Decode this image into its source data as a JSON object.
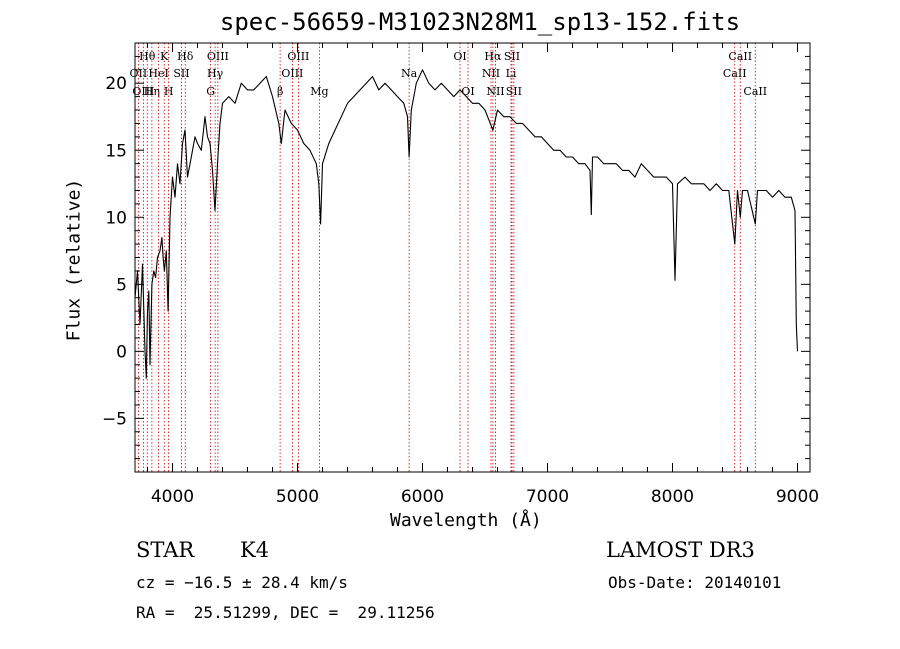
{
  "chart_data": {
    "type": "line",
    "title": "spec-56659-M31023N28M1_sp13-152.fits",
    "xlabel": "Wavelength (Å)",
    "ylabel": "Flux (relative)",
    "xlim": [
      3700,
      9100
    ],
    "ylim": [
      -9,
      23
    ],
    "xticks": [
      4000,
      5000,
      6000,
      7000,
      8000,
      9000
    ],
    "yticks": [
      -5,
      0,
      5,
      10,
      15,
      20
    ],
    "series": [
      {
        "name": "flux",
        "points": [
          [
            3700,
            4.0
          ],
          [
            3720,
            6.0
          ],
          [
            3740,
            2.0
          ],
          [
            3760,
            6.5
          ],
          [
            3780,
            0.0
          ],
          [
            3790,
            -2.0
          ],
          [
            3800,
            3.0
          ],
          [
            3810,
            4.5
          ],
          [
            3820,
            -1.0
          ],
          [
            3835,
            5.0
          ],
          [
            3850,
            6.0
          ],
          [
            3865,
            5.5
          ],
          [
            3880,
            7.0
          ],
          [
            3900,
            7.5
          ],
          [
            3915,
            8.5
          ],
          [
            3925,
            7.0
          ],
          [
            3935,
            6.0
          ],
          [
            3950,
            7.5
          ],
          [
            3965,
            3.0
          ],
          [
            3980,
            10.0
          ],
          [
            4000,
            13.0
          ],
          [
            4020,
            11.5
          ],
          [
            4040,
            14.0
          ],
          [
            4060,
            12.5
          ],
          [
            4080,
            15.5
          ],
          [
            4100,
            16.5
          ],
          [
            4120,
            13.0
          ],
          [
            4150,
            14.5
          ],
          [
            4180,
            16.0
          ],
          [
            4200,
            15.5
          ],
          [
            4230,
            15.0
          ],
          [
            4260,
            17.5
          ],
          [
            4280,
            16.0
          ],
          [
            4300,
            15.5
          ],
          [
            4320,
            13.5
          ],
          [
            4340,
            10.5
          ],
          [
            4360,
            14.0
          ],
          [
            4380,
            17.0
          ],
          [
            4400,
            18.5
          ],
          [
            4450,
            19.0
          ],
          [
            4500,
            18.5
          ],
          [
            4550,
            20.0
          ],
          [
            4600,
            19.5
          ],
          [
            4650,
            19.5
          ],
          [
            4700,
            20.0
          ],
          [
            4750,
            20.5
          ],
          [
            4800,
            19.0
          ],
          [
            4850,
            17.0
          ],
          [
            4870,
            15.5
          ],
          [
            4900,
            18.0
          ],
          [
            4950,
            17.0
          ],
          [
            5000,
            16.5
          ],
          [
            5050,
            15.5
          ],
          [
            5100,
            15.0
          ],
          [
            5150,
            14.0
          ],
          [
            5170,
            12.5
          ],
          [
            5185,
            9.5
          ],
          [
            5200,
            14.0
          ],
          [
            5250,
            15.5
          ],
          [
            5300,
            16.5
          ],
          [
            5350,
            17.5
          ],
          [
            5400,
            18.5
          ],
          [
            5450,
            19.0
          ],
          [
            5500,
            19.5
          ],
          [
            5550,
            20.0
          ],
          [
            5600,
            20.5
          ],
          [
            5650,
            19.5
          ],
          [
            5700,
            20.0
          ],
          [
            5750,
            19.5
          ],
          [
            5800,
            19.0
          ],
          [
            5850,
            18.5
          ],
          [
            5880,
            17.5
          ],
          [
            5893,
            14.5
          ],
          [
            5910,
            18.0
          ],
          [
            5950,
            20.0
          ],
          [
            6000,
            21.0
          ],
          [
            6050,
            20.0
          ],
          [
            6100,
            19.5
          ],
          [
            6150,
            20.0
          ],
          [
            6200,
            19.5
          ],
          [
            6250,
            19.0
          ],
          [
            6300,
            19.5
          ],
          [
            6350,
            19.0
          ],
          [
            6400,
            18.5
          ],
          [
            6450,
            18.5
          ],
          [
            6500,
            18.0
          ],
          [
            6563,
            16.5
          ],
          [
            6600,
            18.0
          ],
          [
            6650,
            17.5
          ],
          [
            6700,
            17.5
          ],
          [
            6750,
            17.0
          ],
          [
            6800,
            17.0
          ],
          [
            6850,
            16.5
          ],
          [
            6900,
            16.0
          ],
          [
            6950,
            16.0
          ],
          [
            7000,
            15.5
          ],
          [
            7050,
            15.0
          ],
          [
            7100,
            15.0
          ],
          [
            7150,
            14.5
          ],
          [
            7200,
            14.5
          ],
          [
            7250,
            14.0
          ],
          [
            7300,
            14.0
          ],
          [
            7340,
            13.5
          ],
          [
            7350,
            10.2
          ],
          [
            7360,
            14.5
          ],
          [
            7400,
            14.5
          ],
          [
            7450,
            14.0
          ],
          [
            7500,
            14.0
          ],
          [
            7550,
            14.0
          ],
          [
            7600,
            13.5
          ],
          [
            7650,
            13.5
          ],
          [
            7700,
            13.0
          ],
          [
            7750,
            14.0
          ],
          [
            7800,
            13.5
          ],
          [
            7850,
            13.0
          ],
          [
            7900,
            13.0
          ],
          [
            7950,
            13.0
          ],
          [
            8000,
            12.5
          ],
          [
            8020,
            5.3
          ],
          [
            8040,
            12.5
          ],
          [
            8100,
            13.0
          ],
          [
            8150,
            12.5
          ],
          [
            8200,
            12.5
          ],
          [
            8250,
            12.5
          ],
          [
            8300,
            12.0
          ],
          [
            8350,
            12.5
          ],
          [
            8400,
            12.0
          ],
          [
            8450,
            12.0
          ],
          [
            8498,
            8.0
          ],
          [
            8520,
            12.0
          ],
          [
            8542,
            10.0
          ],
          [
            8560,
            12.0
          ],
          [
            8600,
            12.0
          ],
          [
            8662,
            9.5
          ],
          [
            8680,
            12.0
          ],
          [
            8700,
            12.0
          ],
          [
            8750,
            12.0
          ],
          [
            8800,
            11.5
          ],
          [
            8850,
            12.0
          ],
          [
            8900,
            11.5
          ],
          [
            8950,
            11.5
          ],
          [
            8980,
            10.5
          ],
          [
            8990,
            2.0
          ],
          [
            9000,
            0.0
          ]
        ]
      }
    ],
    "lines": [
      {
        "label": "Hθ",
        "w": 3798,
        "row": 1
      },
      {
        "label": "OII",
        "w": 3727,
        "row": 2
      },
      {
        "label": "OIII",
        "w": 3767,
        "row": 3
      },
      {
        "label": "Hη",
        "w": 3835,
        "row": 3
      },
      {
        "label": "K",
        "w": 3934,
        "row": 1
      },
      {
        "label": "HeI",
        "w": 3889,
        "row": 2
      },
      {
        "label": "SII",
        "w": 4072,
        "row": 2
      },
      {
        "label": "H",
        "w": 3969,
        "row": 3
      },
      {
        "label": "Hδ",
        "w": 4102,
        "row": 1
      },
      {
        "label": "OIII",
        "w": 4363,
        "row": 1
      },
      {
        "label": "Hγ",
        "w": 4341,
        "row": 2
      },
      {
        "label": "G",
        "w": 4305,
        "row": 3
      },
      {
        "label": "OIII",
        "w": 5007,
        "row": 1
      },
      {
        "label": "OIII",
        "w": 4959,
        "row": 2
      },
      {
        "label": "β",
        "w": 4861,
        "row": 3
      },
      {
        "label": "Mg",
        "w": 5175,
        "row": 3
      },
      {
        "label": "Na",
        "w": 5893,
        "row": 2
      },
      {
        "label": "OI",
        "w": 6300,
        "row": 1
      },
      {
        "label": "OI",
        "w": 6364,
        "row": 3
      },
      {
        "label": "Hα",
        "w": 6563,
        "row": 1
      },
      {
        "label": "SII",
        "w": 6716,
        "row": 1
      },
      {
        "label": "NII",
        "w": 6548,
        "row": 2
      },
      {
        "label": "Li",
        "w": 6708,
        "row": 2
      },
      {
        "label": "NII",
        "w": 6584,
        "row": 3
      },
      {
        "label": "SII",
        "w": 6731,
        "row": 3
      },
      {
        "label": "CaII",
        "w": 8542,
        "row": 1
      },
      {
        "label": "CaII",
        "w": 8498,
        "row": 2
      },
      {
        "label": "CaII",
        "w": 8662,
        "row": 3
      }
    ]
  },
  "info": {
    "class": "STAR",
    "subclass": "K4",
    "survey": "LAMOST DR3",
    "cz": "cz = −16.5 ± 28.4 km/s",
    "obs_date": "Obs-Date: 20140101",
    "coords": "RA =  25.51299, DEC =  29.11256"
  }
}
